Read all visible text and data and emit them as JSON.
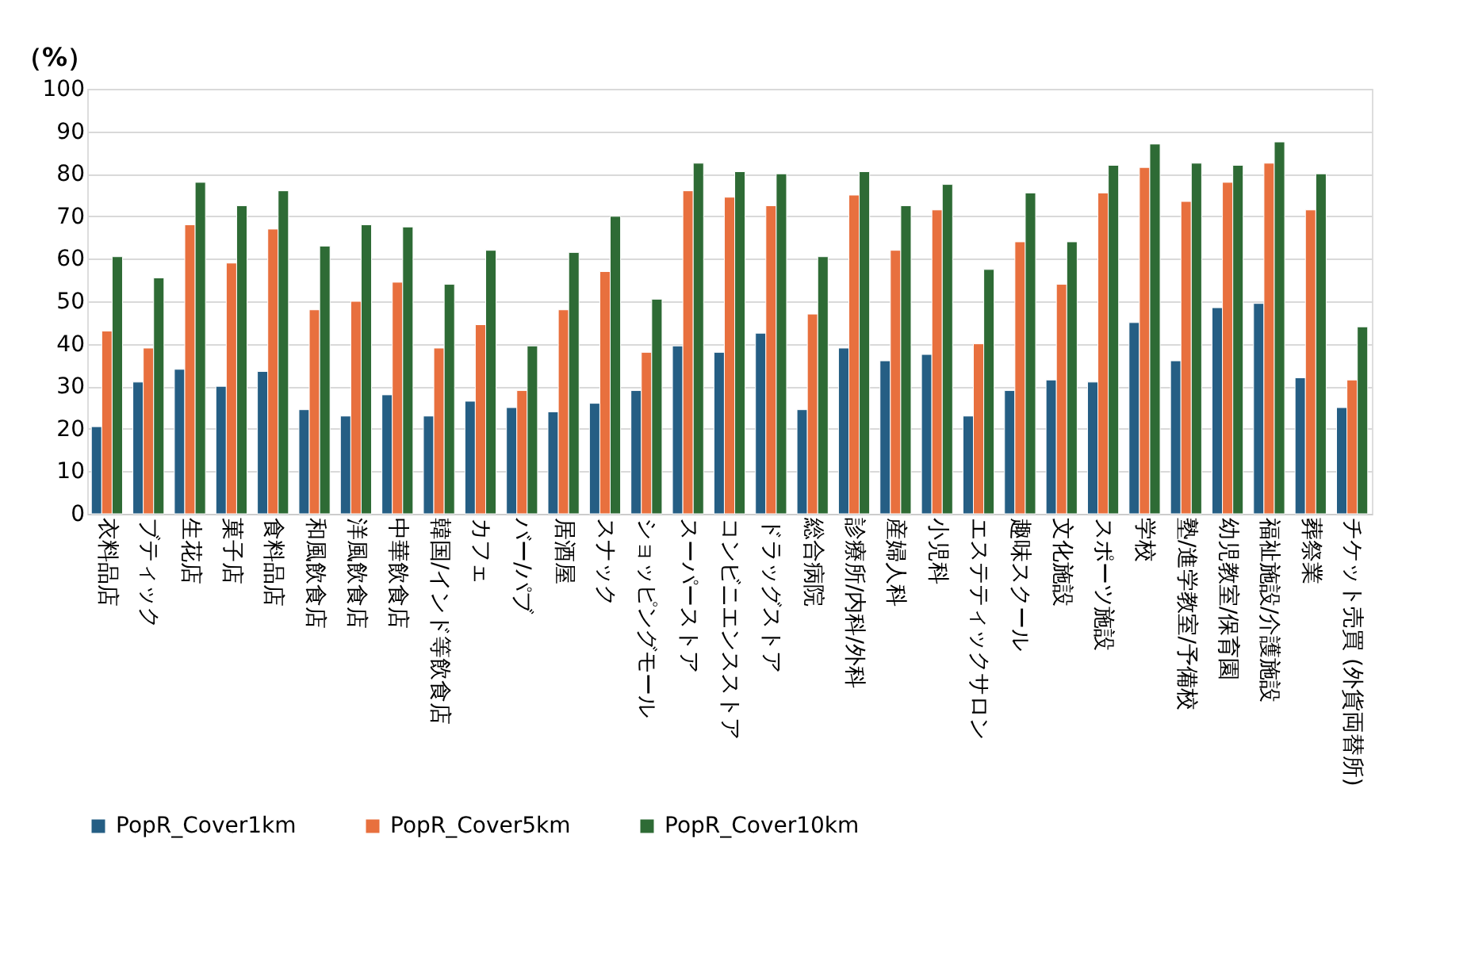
{
  "chart_data": {
    "type": "bar",
    "ylabel": "（%）",
    "categories": [
      "衣料品店",
      "ブティック",
      "生花店",
      "菓子店",
      "食料品店",
      "和風飲食店",
      "洋風飲食店",
      "中華飲食店",
      "韓国/インド等飲食店",
      "カフェ",
      "バー/パブ",
      "居酒屋",
      "スナック",
      "ショッピングモール",
      "スーパーストア",
      "コンビニエンスストア",
      "ドラッグストア",
      "総合病院",
      "診療所/内科/外科",
      "産婦人科",
      "小児科",
      "エステティックサロン",
      "趣味スクール",
      "文化施設",
      "スポーツ施設",
      "学校",
      "塾/進学教室/予備校",
      "幼児教室/保育園",
      "福祉施設/介護施設",
      "葬祭業",
      "チケット売買 (外貨両替所)"
    ],
    "series": [
      {
        "name": "PopR_Cover1km",
        "color": "#255e84",
        "values": [
          20.5,
          31,
          34,
          30,
          33.5,
          24.5,
          23,
          28,
          23,
          26.5,
          25,
          24,
          26,
          29,
          39.5,
          38,
          42.5,
          24.5,
          39,
          36,
          37.5,
          23,
          29,
          31.5,
          31,
          45,
          36,
          48.5,
          49.5,
          32,
          25
        ]
      },
      {
        "name": "PopR_Cover5km",
        "color": "#e8703e",
        "values": [
          43,
          39,
          68,
          59,
          67,
          48,
          50,
          54.5,
          39,
          44.5,
          29,
          48,
          57,
          38,
          76,
          74.5,
          72.5,
          47,
          75,
          62,
          71.5,
          40,
          64,
          54,
          75.5,
          81.5,
          73.5,
          78,
          82.5,
          71.5,
          31.5
        ]
      },
      {
        "name": "PopR_Cover10km",
        "color": "#2e6b35",
        "values": [
          60.5,
          55.5,
          78,
          72.5,
          76,
          63,
          68,
          67.5,
          54,
          62,
          39.5,
          61.5,
          70,
          50.5,
          82.5,
          80.5,
          80,
          60.5,
          80.5,
          72.5,
          77.5,
          57.5,
          75.5,
          64,
          82,
          87,
          82.5,
          82,
          87.5,
          80,
          44
        ]
      }
    ],
    "ylim": [
      0,
      100
    ],
    "yticks": [
      0,
      10,
      20,
      30,
      40,
      50,
      60,
      70,
      80,
      90,
      100
    ],
    "grid": "y",
    "legend": "bottom"
  }
}
